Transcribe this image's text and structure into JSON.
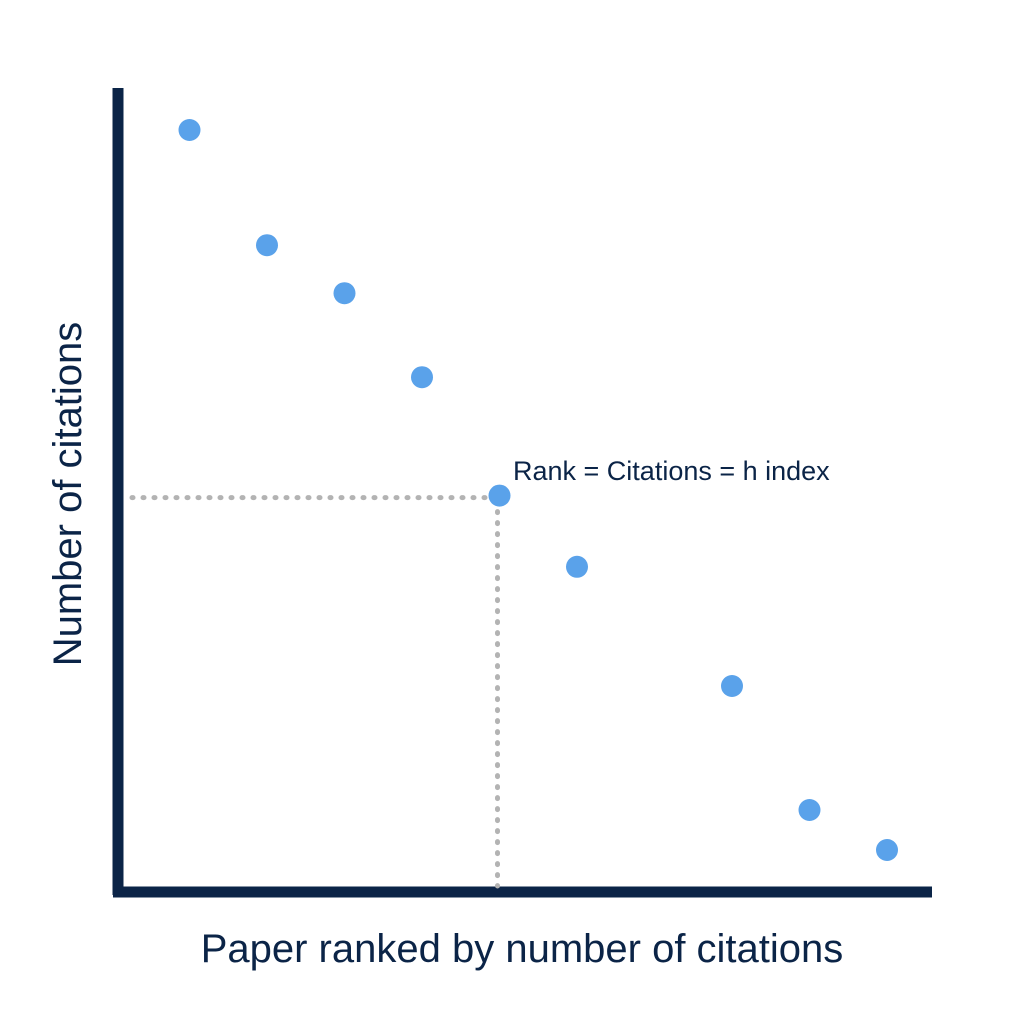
{
  "chart_data": {
    "type": "scatter",
    "title": "",
    "xlabel": "Paper ranked by number of citations",
    "ylabel": "Number of citations",
    "xlim": [
      0,
      10.5
    ],
    "ylim": [
      0,
      10
    ],
    "grid": false,
    "legend": "none",
    "series": [
      {
        "points": [
          {
            "x": 1,
            "y": 9.5
          },
          {
            "x": 2,
            "y": 8.06
          },
          {
            "x": 3,
            "y": 7.46
          },
          {
            "x": 4,
            "y": 6.41
          },
          {
            "x": 5,
            "y": 4.93
          },
          {
            "x": 6,
            "y": 4.04
          },
          {
            "x": 8,
            "y": 2.55
          },
          {
            "x": 9,
            "y": 1.0
          },
          {
            "x": 10,
            "y": 0.5
          }
        ]
      }
    ],
    "annotations": [
      {
        "text": "Rank = Citations = h index",
        "x": 5,
        "y": 4.93
      }
    ],
    "reference_point": {
      "x": 5,
      "y": 4.93
    }
  },
  "colors": {
    "axis": "#0b2447",
    "point": "#5aa2ea",
    "guide": "#b3b3b3",
    "text": "#0b2447"
  }
}
